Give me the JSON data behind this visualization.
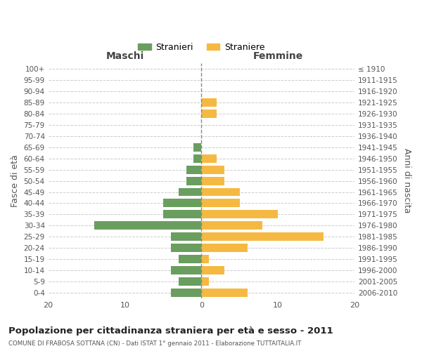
{
  "age_groups": [
    "0-4",
    "5-9",
    "10-14",
    "15-19",
    "20-24",
    "25-29",
    "30-34",
    "35-39",
    "40-44",
    "45-49",
    "50-54",
    "55-59",
    "60-64",
    "65-69",
    "70-74",
    "75-79",
    "80-84",
    "85-89",
    "90-94",
    "95-99",
    "100+"
  ],
  "birth_years": [
    "2006-2010",
    "2001-2005",
    "1996-2000",
    "1991-1995",
    "1986-1990",
    "1981-1985",
    "1976-1980",
    "1971-1975",
    "1966-1970",
    "1961-1965",
    "1956-1960",
    "1951-1955",
    "1946-1950",
    "1941-1945",
    "1936-1940",
    "1931-1935",
    "1926-1930",
    "1921-1925",
    "1916-1920",
    "1911-1915",
    "≤ 1910"
  ],
  "males": [
    4,
    3,
    4,
    3,
    4,
    4,
    14,
    5,
    5,
    3,
    2,
    2,
    1,
    1,
    0,
    0,
    0,
    0,
    0,
    0,
    0
  ],
  "females": [
    6,
    1,
    3,
    1,
    6,
    16,
    8,
    10,
    5,
    5,
    3,
    3,
    2,
    0,
    0,
    0,
    2,
    2,
    0,
    0,
    0
  ],
  "male_color": "#6a9e5f",
  "female_color": "#f5b942",
  "center_line_color": "#888888",
  "grid_color": "#cccccc",
  "bg_color": "#ffffff",
  "title": "Popolazione per cittadinanza straniera per età e sesso - 2011",
  "subtitle": "COMUNE DI FRABOSA SOTTANA (CN) - Dati ISTAT 1° gennaio 2011 - Elaborazione TUTTAITALIA.IT",
  "ylabel_left": "Fasce di età",
  "ylabel_right": "Anni di nascita",
  "xlabel_left": "Maschi",
  "xlabel_right": "Femmine",
  "legend_male": "Stranieri",
  "legend_female": "Straniere",
  "xlim": 20,
  "bar_height": 0.75
}
